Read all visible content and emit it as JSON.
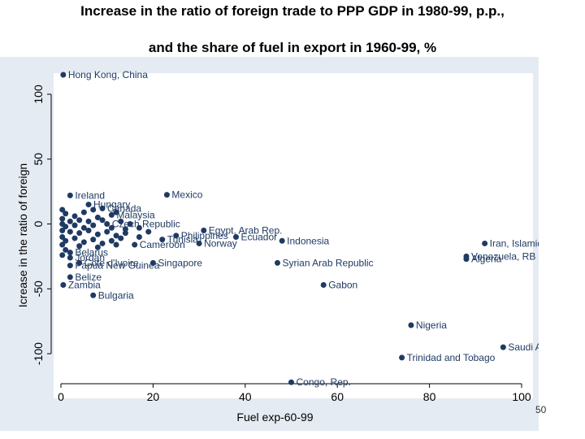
{
  "slide": {
    "title_line1": "Increase  in the ratio of foreign trade to PPP GDP in 1980-99, p.p.,",
    "title_line2": "and the share of fuel in export in 1960-99, %",
    "page_number": "50"
  },
  "colors": {
    "outer_background": "#e5ebf2",
    "plot_background": "#ffffff",
    "marker": "#1f3a63",
    "label": "#1f3a63",
    "axis": "#000000"
  },
  "chart_data": {
    "type": "scatter",
    "title": "",
    "xlabel": "Fuel exp-60-99",
    "ylabel": "Icrease in the ratio of foreign",
    "xlim": [
      0,
      100
    ],
    "ylim": [
      -120,
      115
    ],
    "xticks": [
      0,
      20,
      40,
      60,
      80,
      100
    ],
    "yticks": [
      -100,
      -50,
      0,
      50,
      100
    ],
    "grid": false,
    "points": [
      {
        "x": 0.5,
        "y": 115,
        "label": "Hong Kong, China"
      },
      {
        "x": 23,
        "y": 22.5,
        "label": "Mexico"
      },
      {
        "x": 2,
        "y": 22,
        "label": "Ireland"
      },
      {
        "x": 6,
        "y": 15,
        "label": "Hungary"
      },
      {
        "x": 9,
        "y": 12,
        "label": "Canada"
      },
      {
        "x": 11,
        "y": 7,
        "label": "Malaysia"
      },
      {
        "x": 10,
        "y": 0,
        "label": "Czech Republic"
      },
      {
        "x": 31,
        "y": -5,
        "label": "Egypt, Arab Rep."
      },
      {
        "x": 38,
        "y": -10,
        "label": "Ecuador"
      },
      {
        "x": 48,
        "y": -13,
        "label": "Indonesia"
      },
      {
        "x": 25,
        "y": -9,
        "label": "Philippines"
      },
      {
        "x": 22,
        "y": -12,
        "label": "Tunisia"
      },
      {
        "x": 30,
        "y": -15,
        "label": "Norway"
      },
      {
        "x": 16,
        "y": -16,
        "label": "Cameroon"
      },
      {
        "x": 92,
        "y": -15,
        "label": "Iran, Islamic Rep."
      },
      {
        "x": 88,
        "y": -25,
        "label": "Venezuela, RB"
      },
      {
        "x": 88,
        "y": -27,
        "label": "Algeria"
      },
      {
        "x": 47,
        "y": -30,
        "label": "Syrian Arab Republic"
      },
      {
        "x": 20,
        "y": -30,
        "label": "Singapore"
      },
      {
        "x": 4,
        "y": -30,
        "label": "Cote d'Ivoire"
      },
      {
        "x": 2,
        "y": -32,
        "label": "Papua New Guinea"
      },
      {
        "x": 2,
        "y": -22,
        "label": "Belarus"
      },
      {
        "x": 2,
        "y": -26,
        "label": "Jordan"
      },
      {
        "x": 2,
        "y": -41,
        "label": "Belize"
      },
      {
        "x": 0.5,
        "y": -47,
        "label": "Zambia"
      },
      {
        "x": 57,
        "y": -47,
        "label": "Gabon"
      },
      {
        "x": 7,
        "y": -55,
        "label": "Bulgaria"
      },
      {
        "x": 76,
        "y": -78,
        "label": "Nigeria"
      },
      {
        "x": 96,
        "y": -95,
        "label": "Saudi Arabia"
      },
      {
        "x": 74,
        "y": -103,
        "label": "Trinidad and Tobago"
      },
      {
        "x": 50,
        "y": -122,
        "label": "Congo, Rep."
      },
      {
        "x": 0.3,
        "y": 11,
        "label": ""
      },
      {
        "x": 1,
        "y": 8,
        "label": ""
      },
      {
        "x": 3,
        "y": 6,
        "label": ""
      },
      {
        "x": 5,
        "y": 9,
        "label": ""
      },
      {
        "x": 7,
        "y": 11,
        "label": ""
      },
      {
        "x": 8,
        "y": 5,
        "label": ""
      },
      {
        "x": 12,
        "y": 9,
        "label": ""
      },
      {
        "x": 0.3,
        "y": 4,
        "label": ""
      },
      {
        "x": 2,
        "y": 2,
        "label": ""
      },
      {
        "x": 4,
        "y": 3,
        "label": ""
      },
      {
        "x": 6,
        "y": 2,
        "label": ""
      },
      {
        "x": 9,
        "y": 3,
        "label": ""
      },
      {
        "x": 13,
        "y": 2,
        "label": ""
      },
      {
        "x": 15,
        "y": 0,
        "label": ""
      },
      {
        "x": 0.3,
        "y": 0,
        "label": ""
      },
      {
        "x": 1,
        "y": -2,
        "label": ""
      },
      {
        "x": 3,
        "y": -1,
        "label": ""
      },
      {
        "x": 5,
        "y": -3,
        "label": ""
      },
      {
        "x": 7,
        "y": -1,
        "label": ""
      },
      {
        "x": 11,
        "y": -3,
        "label": ""
      },
      {
        "x": 14,
        "y": -4,
        "label": ""
      },
      {
        "x": 17,
        "y": -3,
        "label": ""
      },
      {
        "x": 0.3,
        "y": -5,
        "label": ""
      },
      {
        "x": 2,
        "y": -6,
        "label": ""
      },
      {
        "x": 4,
        "y": -7,
        "label": ""
      },
      {
        "x": 6,
        "y": -5,
        "label": ""
      },
      {
        "x": 8,
        "y": -8,
        "label": ""
      },
      {
        "x": 10,
        "y": -6,
        "label": ""
      },
      {
        "x": 12,
        "y": -9,
        "label": ""
      },
      {
        "x": 14,
        "y": -7,
        "label": ""
      },
      {
        "x": 17,
        "y": -10,
        "label": ""
      },
      {
        "x": 19,
        "y": -6,
        "label": ""
      },
      {
        "x": 0.3,
        "y": -10,
        "label": ""
      },
      {
        "x": 1,
        "y": -13,
        "label": ""
      },
      {
        "x": 3,
        "y": -11,
        "label": ""
      },
      {
        "x": 5,
        "y": -14,
        "label": ""
      },
      {
        "x": 7,
        "y": -12,
        "label": ""
      },
      {
        "x": 9,
        "y": -15,
        "label": ""
      },
      {
        "x": 11,
        "y": -13,
        "label": ""
      },
      {
        "x": 13,
        "y": -11,
        "label": ""
      },
      {
        "x": 0.3,
        "y": -16,
        "label": ""
      },
      {
        "x": 4,
        "y": -17,
        "label": ""
      },
      {
        "x": 8,
        "y": -18,
        "label": ""
      },
      {
        "x": 12,
        "y": -16,
        "label": ""
      },
      {
        "x": 1,
        "y": -20,
        "label": ""
      },
      {
        "x": 0.3,
        "y": -24,
        "label": ""
      }
    ]
  }
}
